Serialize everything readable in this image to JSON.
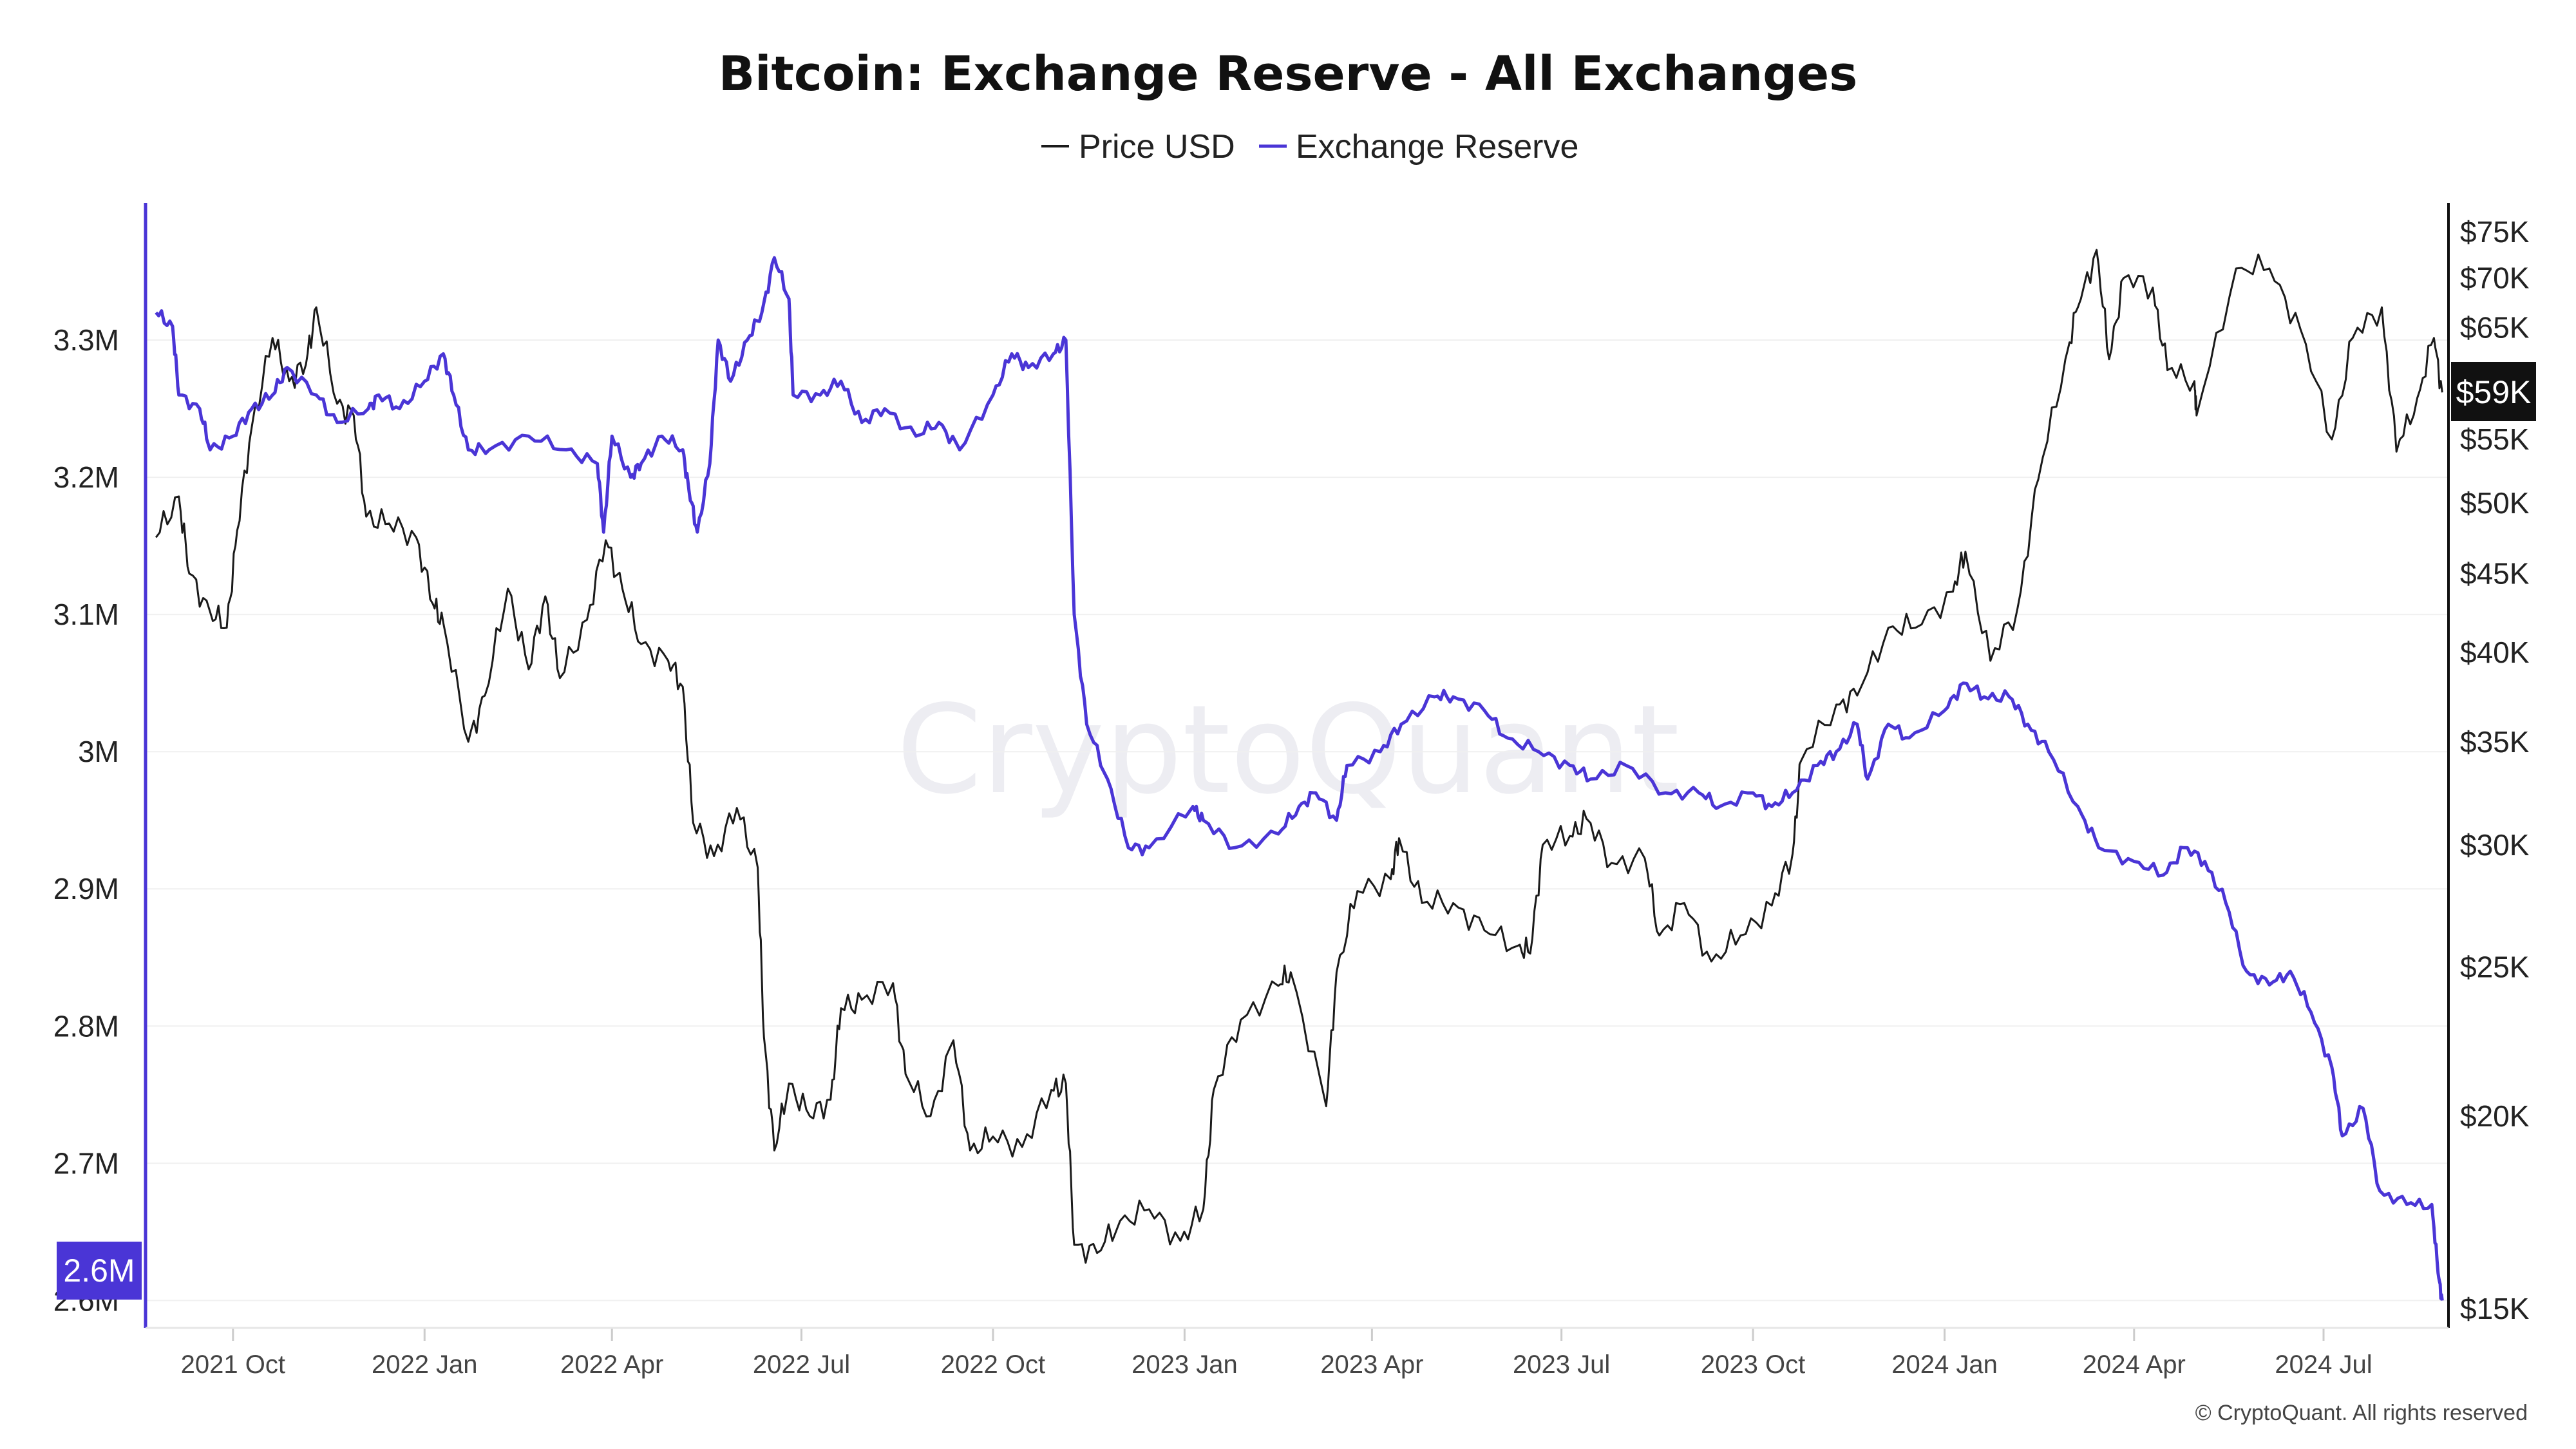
{
  "chart_data": {
    "type": "line",
    "title": "Bitcoin: Exchange Reserve - All Exchanges",
    "legend_position": "top-center",
    "grid": true,
    "colors": {
      "price": "#1a1a1a",
      "reserve": "#4a35d6",
      "badge_dark": "#111111"
    },
    "x_axis": {
      "range": [
        "2021-08-20",
        "2024-08-30"
      ],
      "ticks": [
        "2021 Oct",
        "2022 Jan",
        "2022 Apr",
        "2022 Jul",
        "2022 Oct",
        "2023 Jan",
        "2023 Apr",
        "2023 Jul",
        "2023 Oct",
        "2024 Jan",
        "2024 Apr",
        "2024 Jul"
      ],
      "tick_dates": [
        "2021-10-01",
        "2022-01-01",
        "2022-04-01",
        "2022-07-01",
        "2022-10-01",
        "2023-01-01",
        "2023-04-01",
        "2023-07-01",
        "2023-10-01",
        "2024-01-01",
        "2024-04-01",
        "2024-07-01"
      ]
    },
    "y_left": {
      "range": [
        2.58,
        3.4
      ],
      "ticks": [
        2.6,
        2.7,
        2.8,
        2.9,
        3.0,
        3.1,
        3.2,
        3.3
      ],
      "tick_labels": [
        "2.6M",
        "2.7M",
        "2.8M",
        "2.9M",
        "3M",
        "3.1M",
        "3.2M",
        "3.3M"
      ],
      "current_label": "2.6M"
    },
    "y_right": {
      "scale": "log",
      "range": [
        15000,
        75000
      ],
      "ticks": [
        15000,
        20000,
        25000,
        30000,
        35000,
        40000,
        45000,
        50000,
        55000,
        60000,
        65000,
        70000,
        75000
      ],
      "tick_labels": [
        "$15K",
        "$20K",
        "$25K",
        "$30K",
        "$35K",
        "$40K",
        "$45K",
        "$50K",
        "$55K",
        "",
        "$65K",
        "$70K",
        "$75K"
      ],
      "current_label": "$59K"
    },
    "series": [
      {
        "name": "Price USD",
        "axis": "right",
        "points": [
          [
            "2021-08-25",
            47500
          ],
          [
            "2021-09-05",
            50500
          ],
          [
            "2021-09-10",
            45000
          ],
          [
            "2021-09-20",
            42500
          ],
          [
            "2021-09-28",
            41500
          ],
          [
            "2021-10-03",
            48000
          ],
          [
            "2021-10-10",
            56000
          ],
          [
            "2021-10-20",
            64000
          ],
          [
            "2021-10-28",
            60000
          ],
          [
            "2021-11-05",
            61500
          ],
          [
            "2021-11-10",
            67000
          ],
          [
            "2021-11-20",
            58000
          ],
          [
            "2021-11-28",
            57000
          ],
          [
            "2021-12-04",
            49000
          ],
          [
            "2021-12-15",
            48500
          ],
          [
            "2021-12-28",
            47500
          ],
          [
            "2022-01-05",
            43000
          ],
          [
            "2022-01-10",
            41800
          ],
          [
            "2022-01-22",
            35000
          ],
          [
            "2022-01-30",
            37500
          ],
          [
            "2022-02-10",
            44000
          ],
          [
            "2022-02-20",
            39000
          ],
          [
            "2022-02-28",
            43500
          ],
          [
            "2022-03-07",
            38500
          ],
          [
            "2022-03-20",
            42000
          ],
          [
            "2022-03-29",
            47300
          ],
          [
            "2022-04-06",
            44000
          ],
          [
            "2022-04-15",
            40500
          ],
          [
            "2022-04-28",
            39500
          ],
          [
            "2022-05-05",
            38000
          ],
          [
            "2022-05-10",
            31000
          ],
          [
            "2022-05-20",
            29500
          ],
          [
            "2022-05-31",
            31700
          ],
          [
            "2022-06-10",
            29000
          ],
          [
            "2022-06-13",
            22500
          ],
          [
            "2022-06-18",
            19000
          ],
          [
            "2022-06-25",
            21000
          ],
          [
            "2022-07-05",
            20000
          ],
          [
            "2022-07-15",
            20500
          ],
          [
            "2022-07-20",
            23500
          ],
          [
            "2022-07-30",
            23800
          ],
          [
            "2022-08-14",
            24400
          ],
          [
            "2022-08-20",
            21300
          ],
          [
            "2022-09-01",
            20000
          ],
          [
            "2022-09-12",
            22400
          ],
          [
            "2022-09-20",
            19000
          ],
          [
            "2022-10-01",
            19400
          ],
          [
            "2022-10-15",
            19100
          ],
          [
            "2022-10-29",
            20800
          ],
          [
            "2022-11-05",
            21000
          ],
          [
            "2022-11-09",
            16500
          ],
          [
            "2022-11-20",
            16300
          ],
          [
            "2022-12-01",
            17100
          ],
          [
            "2022-12-15",
            17400
          ],
          [
            "2022-12-30",
            16600
          ],
          [
            "2023-01-10",
            17400
          ],
          [
            "2023-01-15",
            20800
          ],
          [
            "2023-01-28",
            23100
          ],
          [
            "2023-02-15",
            24300
          ],
          [
            "2023-02-21",
            24800
          ],
          [
            "2023-03-10",
            20300
          ],
          [
            "2023-03-15",
            24800
          ],
          [
            "2023-03-25",
            28000
          ],
          [
            "2023-04-10",
            28500
          ],
          [
            "2023-04-14",
            30300
          ],
          [
            "2023-04-25",
            27500
          ],
          [
            "2023-05-10",
            27500
          ],
          [
            "2023-05-25",
            26400
          ],
          [
            "2023-06-10",
            25800
          ],
          [
            "2023-06-16",
            25500
          ],
          [
            "2023-06-22",
            30000
          ],
          [
            "2023-07-05",
            30400
          ],
          [
            "2023-07-13",
            31200
          ],
          [
            "2023-07-25",
            29200
          ],
          [
            "2023-08-10",
            29400
          ],
          [
            "2023-08-17",
            26200
          ],
          [
            "2023-08-29",
            27500
          ],
          [
            "2023-09-11",
            25200
          ],
          [
            "2023-09-25",
            26200
          ],
          [
            "2023-10-10",
            27400
          ],
          [
            "2023-10-20",
            29600
          ],
          [
            "2023-10-24",
            34000
          ],
          [
            "2023-11-10",
            37000
          ],
          [
            "2023-11-20",
            37500
          ],
          [
            "2023-12-05",
            41500
          ],
          [
            "2023-12-18",
            41500
          ],
          [
            "2024-01-05",
            43800
          ],
          [
            "2024-01-11",
            46500
          ],
          [
            "2024-01-23",
            39500
          ],
          [
            "2024-02-05",
            42700
          ],
          [
            "2024-02-15",
            51800
          ],
          [
            "2024-02-28",
            62000
          ],
          [
            "2024-03-05",
            67000
          ],
          [
            "2024-03-14",
            73000
          ],
          [
            "2024-03-20",
            62000
          ],
          [
            "2024-03-27",
            70000
          ],
          [
            "2024-04-10",
            69000
          ],
          [
            "2024-04-17",
            61000
          ],
          [
            "2024-04-30",
            60000
          ],
          [
            "2024-05-01",
            57000
          ],
          [
            "2024-05-20",
            71000
          ],
          [
            "2024-06-05",
            71000
          ],
          [
            "2024-06-20",
            64800
          ],
          [
            "2024-07-05",
            55000
          ],
          [
            "2024-07-15",
            64000
          ],
          [
            "2024-07-29",
            67000
          ],
          [
            "2024-08-05",
            54000
          ],
          [
            "2024-08-15",
            58500
          ],
          [
            "2024-08-23",
            64000
          ],
          [
            "2024-08-27",
            59000
          ]
        ]
      },
      {
        "name": "Exchange Reserve",
        "axis": "left",
        "points": [
          [
            "2021-08-25",
            3.32
          ],
          [
            "2021-09-02",
            3.31
          ],
          [
            "2021-09-05",
            3.26
          ],
          [
            "2021-09-15",
            3.25
          ],
          [
            "2021-09-20",
            3.22
          ],
          [
            "2021-10-01",
            3.23
          ],
          [
            "2021-10-10",
            3.25
          ],
          [
            "2021-10-20",
            3.26
          ],
          [
            "2021-10-27",
            3.28
          ],
          [
            "2021-11-10",
            3.26
          ],
          [
            "2021-11-20",
            3.24
          ],
          [
            "2021-12-05",
            3.25
          ],
          [
            "2021-12-10",
            3.26
          ],
          [
            "2021-12-20",
            3.25
          ],
          [
            "2022-01-01",
            3.27
          ],
          [
            "2022-01-10",
            3.29
          ],
          [
            "2022-01-15",
            3.26
          ],
          [
            "2022-01-22",
            3.22
          ],
          [
            "2022-02-01",
            3.22
          ],
          [
            "2022-02-20",
            3.23
          ],
          [
            "2022-03-10",
            3.22
          ],
          [
            "2022-03-25",
            3.21
          ],
          [
            "2022-03-28",
            3.16
          ],
          [
            "2022-04-01",
            3.23
          ],
          [
            "2022-04-10",
            3.2
          ],
          [
            "2022-04-15",
            3.21
          ],
          [
            "2022-04-25",
            3.23
          ],
          [
            "2022-05-05",
            3.22
          ],
          [
            "2022-05-08",
            3.19
          ],
          [
            "2022-05-12",
            3.16
          ],
          [
            "2022-05-18",
            3.21
          ],
          [
            "2022-05-22",
            3.3
          ],
          [
            "2022-05-28",
            3.27
          ],
          [
            "2022-06-05",
            3.3
          ],
          [
            "2022-06-12",
            3.32
          ],
          [
            "2022-06-18",
            3.36
          ],
          [
            "2022-06-25",
            3.33
          ],
          [
            "2022-06-27",
            3.26
          ],
          [
            "2022-07-10",
            3.26
          ],
          [
            "2022-07-20",
            3.27
          ],
          [
            "2022-07-30",
            3.24
          ],
          [
            "2022-08-10",
            3.25
          ],
          [
            "2022-08-25",
            3.23
          ],
          [
            "2022-09-05",
            3.24
          ],
          [
            "2022-09-15",
            3.22
          ],
          [
            "2022-10-01",
            3.26
          ],
          [
            "2022-10-10",
            3.29
          ],
          [
            "2022-10-18",
            3.28
          ],
          [
            "2022-10-30",
            3.29
          ],
          [
            "2022-11-05",
            3.3
          ],
          [
            "2022-11-09",
            3.1
          ],
          [
            "2022-11-15",
            3.02
          ],
          [
            "2022-11-25",
            2.98
          ],
          [
            "2022-12-05",
            2.93
          ],
          [
            "2022-12-15",
            2.93
          ],
          [
            "2023-01-05",
            2.96
          ],
          [
            "2023-01-10",
            2.95
          ],
          [
            "2023-01-25",
            2.93
          ],
          [
            "2023-02-15",
            2.94
          ],
          [
            "2023-02-25",
            2.96
          ],
          [
            "2023-03-05",
            2.97
          ],
          [
            "2023-03-15",
            2.95
          ],
          [
            "2023-03-20",
            2.99
          ],
          [
            "2023-04-05",
            3.0
          ],
          [
            "2023-04-15",
            3.02
          ],
          [
            "2023-05-01",
            3.04
          ],
          [
            "2023-05-10",
            3.04
          ],
          [
            "2023-05-25",
            3.03
          ],
          [
            "2023-06-05",
            3.01
          ],
          [
            "2023-06-20",
            3.0
          ],
          [
            "2023-07-05",
            2.99
          ],
          [
            "2023-07-15",
            2.98
          ],
          [
            "2023-08-01",
            2.99
          ],
          [
            "2023-08-20",
            2.97
          ],
          [
            "2023-09-05",
            2.97
          ],
          [
            "2023-09-15",
            2.96
          ],
          [
            "2023-10-01",
            2.97
          ],
          [
            "2023-10-10",
            2.96
          ],
          [
            "2023-10-20",
            2.97
          ],
          [
            "2023-11-01",
            2.99
          ],
          [
            "2023-11-10",
            3.0
          ],
          [
            "2023-11-20",
            3.02
          ],
          [
            "2023-11-25",
            2.98
          ],
          [
            "2023-12-05",
            3.02
          ],
          [
            "2023-12-15",
            3.01
          ],
          [
            "2024-01-01",
            3.03
          ],
          [
            "2024-01-10",
            3.05
          ],
          [
            "2024-01-20",
            3.04
          ],
          [
            "2024-02-01",
            3.04
          ],
          [
            "2024-02-10",
            3.02
          ],
          [
            "2024-02-20",
            3.0
          ],
          [
            "2024-03-05",
            2.96
          ],
          [
            "2024-03-15",
            2.93
          ],
          [
            "2024-04-01",
            2.92
          ],
          [
            "2024-04-15",
            2.91
          ],
          [
            "2024-04-25",
            2.93
          ],
          [
            "2024-05-05",
            2.92
          ],
          [
            "2024-05-15",
            2.89
          ],
          [
            "2024-05-25",
            2.84
          ],
          [
            "2024-06-05",
            2.83
          ],
          [
            "2024-06-15",
            2.84
          ],
          [
            "2024-06-25",
            2.81
          ],
          [
            "2024-07-05",
            2.77
          ],
          [
            "2024-07-10",
            2.72
          ],
          [
            "2024-07-20",
            2.74
          ],
          [
            "2024-07-28",
            2.68
          ],
          [
            "2024-08-10",
            2.67
          ],
          [
            "2024-08-22",
            2.67
          ],
          [
            "2024-08-25",
            2.62
          ],
          [
            "2024-08-27",
            2.6
          ]
        ]
      }
    ]
  },
  "footer": {
    "credit": "© CryptoQuant. All rights reserved"
  },
  "watermark": "CryptoQuant"
}
